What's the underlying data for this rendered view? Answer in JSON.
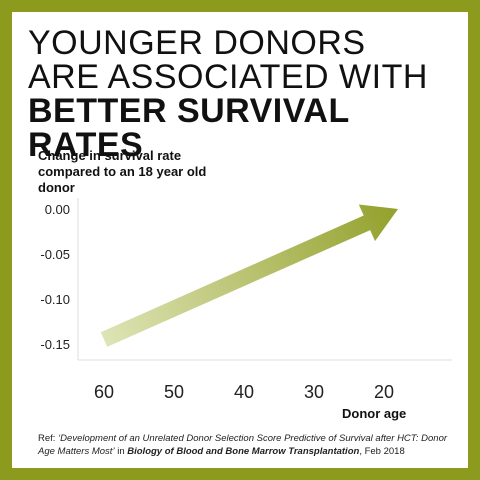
{
  "headline": {
    "line1": "YOUNGER DONORS",
    "line2": "ARE ASSOCIATED WITH",
    "line3": "BETTER SURVIVAL RATES"
  },
  "colors": {
    "frame": "#8c9a1e",
    "arrow_start": "#dfe5b8",
    "arrow_end": "#8c9a1e"
  },
  "chart_data": {
    "type": "line",
    "ylabel": "Change in survival rate compared to an 18 year old donor",
    "xlabel": "Donor age",
    "x_ticks": [
      60,
      50,
      40,
      30,
      20
    ],
    "y_ticks": [
      "0.00",
      "-0.05",
      "-0.10",
      "-0.15"
    ],
    "xlim": [
      64,
      15
    ],
    "ylim": [
      -0.165,
      0.005
    ],
    "series": [
      {
        "x": [
          60,
          18
        ],
        "values": [
          -0.145,
          0.0
        ]
      }
    ]
  },
  "reference": {
    "prefix": "Ref: ",
    "title": "‘Development of an Unrelated Donor Selection Score Predictive of Survival after HCT: Donor Age Matters Most’",
    "mid": " in ",
    "journal": "Biology of Blood and Bone Marrow Transplantation",
    "suffix": ", Feb 2018"
  }
}
